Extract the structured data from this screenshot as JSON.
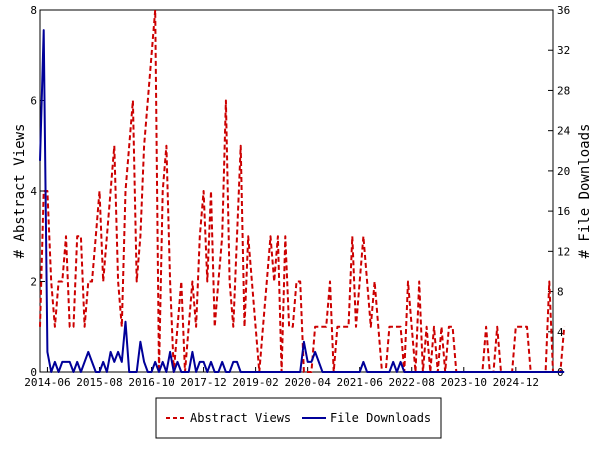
{
  "chart_data": {
    "type": "line",
    "title": "",
    "x_tick_labels": [
      "2014-06",
      "2015-08",
      "2016-10",
      "2017-12",
      "2019-02",
      "2020-04",
      "2021-06",
      "2022-08",
      "2023-10",
      "2024-12"
    ],
    "x_start": "2014-04",
    "x_end": "2025-10",
    "left_axis": {
      "label": "# Abstract Views",
      "ylim": [
        0,
        8
      ],
      "ticks": [
        0,
        2,
        4,
        6,
        8
      ]
    },
    "right_axis": {
      "label": "# File Downloads",
      "ylim": [
        0,
        36
      ],
      "ticks": [
        0,
        4,
        8,
        12,
        16,
        20,
        24,
        28,
        32,
        36
      ]
    },
    "grid": false,
    "legend": {
      "placement": "bottom-center"
    },
    "series": [
      {
        "name": "Abstract Views",
        "axis": "left",
        "color": "#cc0000",
        "style": "dashed",
        "points": [
          [
            "2014-04",
            1
          ],
          [
            "2014-05",
            4
          ],
          [
            "2014-06",
            4
          ],
          [
            "2014-07",
            2
          ],
          [
            "2014-08",
            1
          ],
          [
            "2014-09",
            2
          ],
          [
            "2014-10",
            2
          ],
          [
            "2014-11",
            3
          ],
          [
            "2014-12",
            1
          ],
          [
            "2015-01",
            1
          ],
          [
            "2015-02",
            3
          ],
          [
            "2015-03",
            3
          ],
          [
            "2015-04",
            1
          ],
          [
            "2015-05",
            2
          ],
          [
            "2015-06",
            2
          ],
          [
            "2015-07",
            3
          ],
          [
            "2015-08",
            4
          ],
          [
            "2015-09",
            2
          ],
          [
            "2015-10",
            3
          ],
          [
            "2015-11",
            4
          ],
          [
            "2015-12",
            5
          ],
          [
            "2016-01",
            2
          ],
          [
            "2016-02",
            1
          ],
          [
            "2016-03",
            4
          ],
          [
            "2016-04",
            5
          ],
          [
            "2016-05",
            6
          ],
          [
            "2016-06",
            2
          ],
          [
            "2016-07",
            3
          ],
          [
            "2016-08",
            5
          ],
          [
            "2016-09",
            6
          ],
          [
            "2016-10",
            7
          ],
          [
            "2016-11",
            8
          ],
          [
            "2016-12",
            0
          ],
          [
            "2017-01",
            4
          ],
          [
            "2017-02",
            5
          ],
          [
            "2017-03",
            2
          ],
          [
            "2017-04",
            0
          ],
          [
            "2017-05",
            1
          ],
          [
            "2017-06",
            2
          ],
          [
            "2017-07",
            0
          ],
          [
            "2017-08",
            1
          ],
          [
            "2017-09",
            2
          ],
          [
            "2017-10",
            1
          ],
          [
            "2017-11",
            3
          ],
          [
            "2017-12",
            4
          ],
          [
            "2018-01",
            2
          ],
          [
            "2018-02",
            4
          ],
          [
            "2018-03",
            1
          ],
          [
            "2018-04",
            2
          ],
          [
            "2018-05",
            3
          ],
          [
            "2018-06",
            6
          ],
          [
            "2018-07",
            2
          ],
          [
            "2018-08",
            1
          ],
          [
            "2018-09",
            3
          ],
          [
            "2018-10",
            5
          ],
          [
            "2018-11",
            1
          ],
          [
            "2018-12",
            3
          ],
          [
            "2019-01",
            2
          ],
          [
            "2019-02",
            1
          ],
          [
            "2019-03",
            0
          ],
          [
            "2019-04",
            1
          ],
          [
            "2019-05",
            2
          ],
          [
            "2019-06",
            3
          ],
          [
            "2019-07",
            2
          ],
          [
            "2019-08",
            3
          ],
          [
            "2019-09",
            0
          ],
          [
            "2019-10",
            3
          ],
          [
            "2019-11",
            1
          ],
          [
            "2019-12",
            1
          ],
          [
            "2020-01",
            2
          ],
          [
            "2020-02",
            2
          ],
          [
            "2020-03",
            0
          ],
          [
            "2020-04",
            0
          ],
          [
            "2020-05",
            0
          ],
          [
            "2020-06",
            1
          ],
          [
            "2020-07",
            1
          ],
          [
            "2020-08",
            1
          ],
          [
            "2020-09",
            1
          ],
          [
            "2020-10",
            2
          ],
          [
            "2020-11",
            0
          ],
          [
            "2020-12",
            1
          ],
          [
            "2021-01",
            1
          ],
          [
            "2021-02",
            1
          ],
          [
            "2021-03",
            1
          ],
          [
            "2021-04",
            3
          ],
          [
            "2021-05",
            1
          ],
          [
            "2021-06",
            2
          ],
          [
            "2021-07",
            3
          ],
          [
            "2021-08",
            2
          ],
          [
            "2021-09",
            1
          ],
          [
            "2021-10",
            2
          ],
          [
            "2021-11",
            1
          ],
          [
            "2021-12",
            0
          ],
          [
            "2022-01",
            0
          ],
          [
            "2022-02",
            1
          ],
          [
            "2022-03",
            1
          ],
          [
            "2022-04",
            1
          ],
          [
            "2022-05",
            1
          ],
          [
            "2022-06",
            0
          ],
          [
            "2022-07",
            2
          ],
          [
            "2022-08",
            1
          ],
          [
            "2022-09",
            0
          ],
          [
            "2022-10",
            2
          ],
          [
            "2022-11",
            0
          ],
          [
            "2022-12",
            1
          ],
          [
            "2023-01",
            0
          ],
          [
            "2023-02",
            1
          ],
          [
            "2023-03",
            0
          ],
          [
            "2023-04",
            1
          ],
          [
            "2023-05",
            0
          ],
          [
            "2023-06",
            1
          ],
          [
            "2023-07",
            1
          ],
          [
            "2023-08",
            0
          ],
          [
            "2023-09",
            0
          ],
          [
            "2023-10",
            0
          ],
          [
            "2023-11",
            0
          ],
          [
            "2023-12",
            0
          ],
          [
            "2024-01",
            0
          ],
          [
            "2024-02",
            0
          ],
          [
            "2024-03",
            0
          ],
          [
            "2024-04",
            1
          ],
          [
            "2024-05",
            0
          ],
          [
            "2024-06",
            0
          ],
          [
            "2024-07",
            1
          ],
          [
            "2024-08",
            0
          ],
          [
            "2024-09",
            0
          ],
          [
            "2024-10",
            0
          ],
          [
            "2024-11",
            0
          ],
          [
            "2024-12",
            1
          ],
          [
            "2025-01",
            1
          ],
          [
            "2025-02",
            1
          ],
          [
            "2025-03",
            1
          ],
          [
            "2025-04",
            0
          ],
          [
            "2025-05",
            0
          ],
          [
            "2025-06",
            0
          ],
          [
            "2025-07",
            0
          ],
          [
            "2025-08",
            0
          ],
          [
            "2025-09",
            2
          ],
          [
            "2025-10",
            0
          ],
          [
            "2025-11",
            0
          ],
          [
            "2025-12",
            0
          ],
          [
            "2026-01",
            1
          ]
        ]
      },
      {
        "name": "File Downloads",
        "axis": "right",
        "color": "#000099",
        "style": "solid",
        "points": [
          [
            "2014-04",
            21
          ],
          [
            "2014-05",
            34
          ],
          [
            "2014-06",
            2
          ],
          [
            "2014-07",
            0
          ],
          [
            "2014-08",
            1
          ],
          [
            "2014-09",
            0
          ],
          [
            "2014-10",
            1
          ],
          [
            "2014-11",
            1
          ],
          [
            "2014-12",
            1
          ],
          [
            "2015-01",
            0
          ],
          [
            "2015-02",
            1
          ],
          [
            "2015-03",
            0
          ],
          [
            "2015-04",
            1
          ],
          [
            "2015-05",
            2
          ],
          [
            "2015-06",
            1
          ],
          [
            "2015-07",
            0
          ],
          [
            "2015-08",
            0
          ],
          [
            "2015-09",
            1
          ],
          [
            "2015-10",
            0
          ],
          [
            "2015-11",
            2
          ],
          [
            "2015-12",
            1
          ],
          [
            "2016-01",
            2
          ],
          [
            "2016-02",
            1
          ],
          [
            "2016-03",
            5
          ],
          [
            "2016-04",
            0
          ],
          [
            "2016-05",
            0
          ],
          [
            "2016-06",
            0
          ],
          [
            "2016-07",
            3
          ],
          [
            "2016-08",
            1
          ],
          [
            "2016-09",
            0
          ],
          [
            "2016-10",
            0
          ],
          [
            "2016-11",
            1
          ],
          [
            "2016-12",
            0
          ],
          [
            "2017-01",
            1
          ],
          [
            "2017-02",
            0
          ],
          [
            "2017-03",
            2
          ],
          [
            "2017-04",
            0
          ],
          [
            "2017-05",
            1
          ],
          [
            "2017-06",
            0
          ],
          [
            "2017-07",
            0
          ],
          [
            "2017-08",
            0
          ],
          [
            "2017-09",
            2
          ],
          [
            "2017-10",
            0
          ],
          [
            "2017-11",
            1
          ],
          [
            "2017-12",
            1
          ],
          [
            "2018-01",
            0
          ],
          [
            "2018-02",
            1
          ],
          [
            "2018-03",
            0
          ],
          [
            "2018-04",
            0
          ],
          [
            "2018-05",
            1
          ],
          [
            "2018-06",
            0
          ],
          [
            "2018-07",
            0
          ],
          [
            "2018-08",
            1
          ],
          [
            "2018-09",
            1
          ],
          [
            "2018-10",
            0
          ],
          [
            "2018-11",
            0
          ],
          [
            "2018-12",
            0
          ],
          [
            "2019-01",
            0
          ],
          [
            "2019-02",
            0
          ],
          [
            "2019-03",
            0
          ],
          [
            "2019-04",
            0
          ],
          [
            "2019-05",
            0
          ],
          [
            "2019-06",
            0
          ],
          [
            "2019-07",
            0
          ],
          [
            "2019-08",
            0
          ],
          [
            "2019-09",
            0
          ],
          [
            "2019-10",
            0
          ],
          [
            "2019-11",
            0
          ],
          [
            "2019-12",
            0
          ],
          [
            "2020-01",
            0
          ],
          [
            "2020-02",
            0
          ],
          [
            "2020-03",
            3
          ],
          [
            "2020-04",
            1
          ],
          [
            "2020-05",
            1
          ],
          [
            "2020-06",
            2
          ],
          [
            "2020-07",
            1
          ],
          [
            "2020-08",
            0
          ],
          [
            "2020-09",
            0
          ],
          [
            "2020-10",
            0
          ],
          [
            "2020-11",
            0
          ],
          [
            "2020-12",
            0
          ],
          [
            "2021-01",
            0
          ],
          [
            "2021-02",
            0
          ],
          [
            "2021-03",
            0
          ],
          [
            "2021-04",
            0
          ],
          [
            "2021-05",
            0
          ],
          [
            "2021-06",
            0
          ],
          [
            "2021-07",
            1
          ],
          [
            "2021-08",
            0
          ],
          [
            "2021-09",
            0
          ],
          [
            "2021-10",
            0
          ],
          [
            "2021-11",
            0
          ],
          [
            "2021-12",
            0
          ],
          [
            "2022-01",
            0
          ],
          [
            "2022-02",
            0
          ],
          [
            "2022-03",
            1
          ],
          [
            "2022-04",
            0
          ],
          [
            "2022-05",
            1
          ],
          [
            "2022-06",
            0
          ],
          [
            "2022-07",
            0
          ],
          [
            "2022-08",
            0
          ],
          [
            "2022-09",
            0
          ],
          [
            "2022-10",
            0
          ],
          [
            "2022-11",
            0
          ],
          [
            "2022-12",
            0
          ],
          [
            "2023-01",
            0
          ],
          [
            "2023-02",
            0
          ],
          [
            "2023-03",
            0
          ],
          [
            "2023-04",
            0
          ],
          [
            "2023-05",
            0
          ],
          [
            "2023-06",
            0
          ],
          [
            "2023-07",
            0
          ],
          [
            "2023-08",
            0
          ],
          [
            "2023-09",
            0
          ],
          [
            "2023-10",
            0
          ],
          [
            "2023-11",
            0
          ],
          [
            "2023-12",
            0
          ],
          [
            "2024-01",
            0
          ],
          [
            "2024-02",
            0
          ],
          [
            "2024-03",
            0
          ],
          [
            "2024-04",
            0
          ],
          [
            "2024-05",
            0
          ],
          [
            "2024-06",
            0
          ],
          [
            "2024-07",
            0
          ],
          [
            "2024-08",
            0
          ],
          [
            "2024-09",
            0
          ],
          [
            "2024-10",
            0
          ],
          [
            "2024-11",
            0
          ],
          [
            "2024-12",
            0
          ],
          [
            "2025-01",
            0
          ],
          [
            "2025-02",
            0
          ],
          [
            "2025-03",
            0
          ],
          [
            "2025-04",
            0
          ],
          [
            "2025-05",
            0
          ],
          [
            "2025-06",
            0
          ],
          [
            "2025-07",
            0
          ],
          [
            "2025-08",
            0
          ],
          [
            "2025-09",
            0
          ],
          [
            "2025-10",
            0
          ],
          [
            "2025-11",
            0
          ],
          [
            "2025-12",
            0
          ],
          [
            "2026-01",
            0
          ]
        ]
      }
    ]
  }
}
